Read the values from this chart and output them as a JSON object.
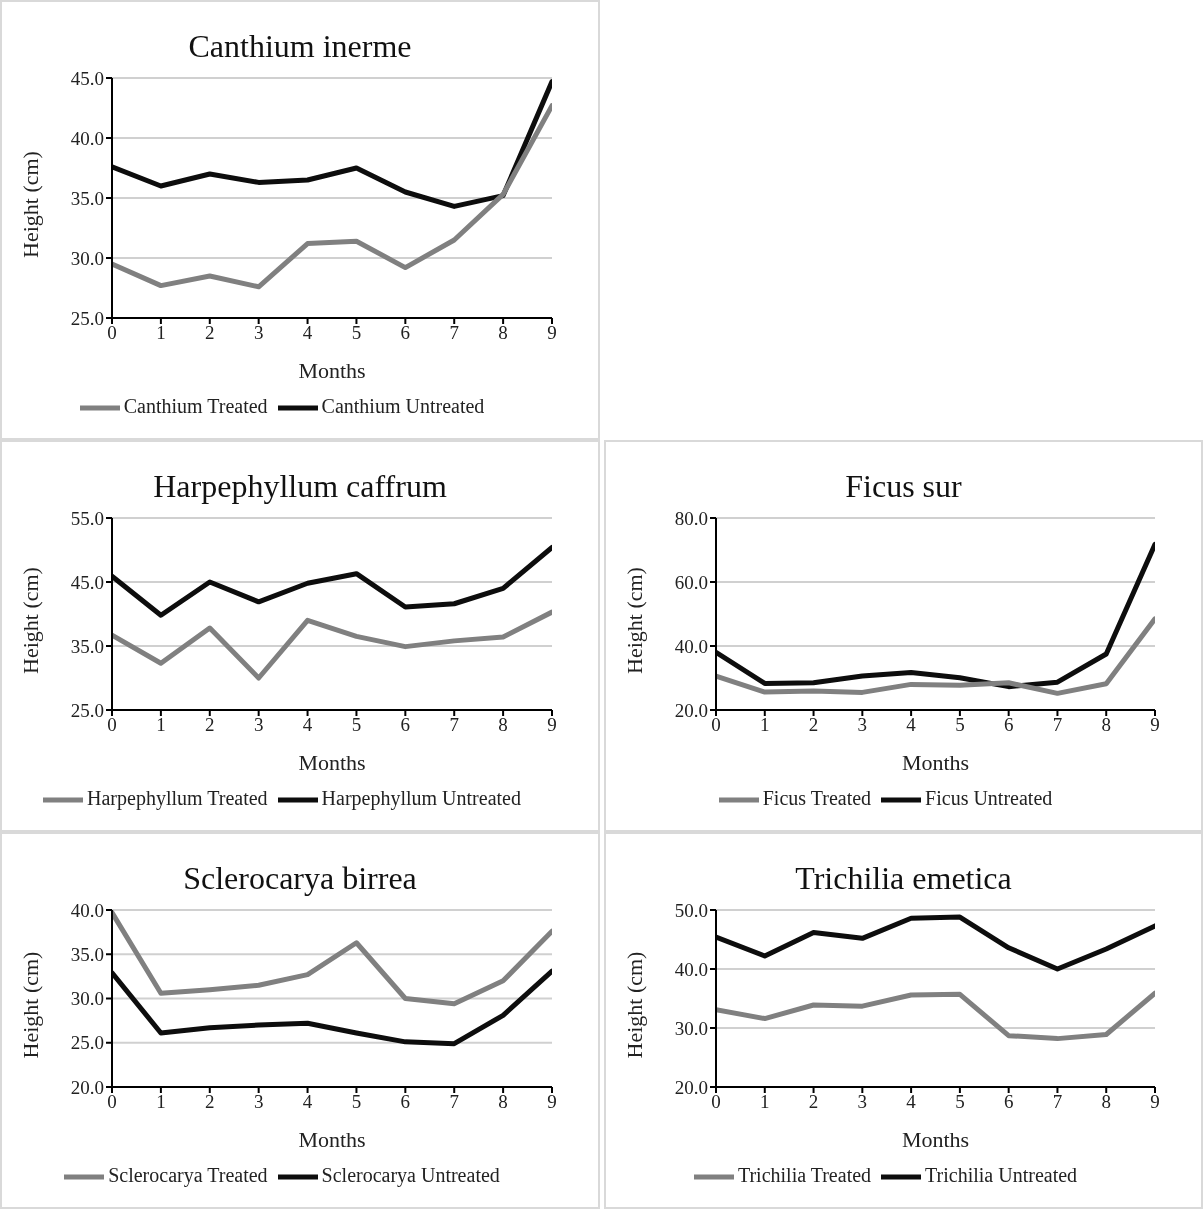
{
  "chart_data": [
    {
      "type": "line",
      "title": "Canthium inerme",
      "xlabel": "Months",
      "ylabel": "Height (cm)",
      "x": [
        0,
        1,
        2,
        3,
        4,
        5,
        6,
        7,
        8,
        9
      ],
      "xlim": [
        0,
        9
      ],
      "xticks": [
        0,
        1,
        2,
        3,
        4,
        5,
        6,
        7,
        8,
        9
      ],
      "ylim": [
        25,
        45
      ],
      "yticks": [
        {
          "value": 25,
          "label": "25.0"
        },
        {
          "value": 30,
          "label": "30.0"
        },
        {
          "value": 35,
          "label": "35.0"
        },
        {
          "value": 40,
          "label": "40.0"
        },
        {
          "value": 45,
          "label": "45.0"
        }
      ],
      "grid": "y",
      "legend": "bottom",
      "marker": "none",
      "line_style": "solid",
      "series": [
        {
          "name": "Canthium Untreated",
          "color": "#0d0d0d",
          "values": [
            37.6,
            36.0,
            37.0,
            36.3,
            36.5,
            37.5,
            35.5,
            34.3,
            35.2,
            44.7
          ]
        },
        {
          "name": "Canthium Treated",
          "color": "#808080",
          "values": [
            29.5,
            27.7,
            28.5,
            27.6,
            31.2,
            31.4,
            29.2,
            31.5,
            35.3,
            42.7
          ]
        }
      ]
    },
    {
      "type": "line",
      "title": "Harpephyllum caffrum",
      "xlabel": "Months",
      "ylabel": "Height (cm)",
      "x": [
        0,
        1,
        2,
        3,
        4,
        5,
        6,
        7,
        8,
        9
      ],
      "xlim": [
        0,
        9
      ],
      "xticks": [
        0,
        1,
        2,
        3,
        4,
        5,
        6,
        7,
        8,
        9
      ],
      "ylim": [
        25,
        55
      ],
      "yticks": [
        {
          "value": 25,
          "label": "25.0"
        },
        {
          "value": 35,
          "label": "35.0"
        },
        {
          "value": 45,
          "label": "45.0"
        },
        {
          "value": 55,
          "label": "55.0"
        }
      ],
      "grid": "y",
      "legend": "bottom",
      "marker": "none",
      "line_style": "solid",
      "series": [
        {
          "name": "Harpephyllum Untreated",
          "color": "#0d0d0d",
          "values": [
            45.9,
            39.8,
            45.0,
            41.9,
            44.8,
            46.3,
            41.1,
            41.6,
            44.0,
            50.4
          ]
        },
        {
          "name": "Harpephyllum Treated",
          "color": "#808080",
          "values": [
            36.7,
            32.3,
            37.8,
            30.0,
            39.0,
            36.5,
            34.9,
            35.8,
            36.4,
            40.3
          ]
        }
      ]
    },
    {
      "type": "line",
      "title": "Ficus sur",
      "xlabel": "Months",
      "ylabel": "Height (cm)",
      "x": [
        0,
        1,
        2,
        3,
        4,
        5,
        6,
        7,
        8,
        9
      ],
      "xlim": [
        0,
        9
      ],
      "xticks": [
        0,
        1,
        2,
        3,
        4,
        5,
        6,
        7,
        8,
        9
      ],
      "ylim": [
        20,
        80
      ],
      "yticks": [
        {
          "value": 20,
          "label": "20.0"
        },
        {
          "value": 40,
          "label": "40.0"
        },
        {
          "value": 60,
          "label": "60.0"
        },
        {
          "value": 80,
          "label": "80.0"
        }
      ],
      "grid": "y",
      "legend": "bottom",
      "marker": "none",
      "line_style": "solid",
      "series": [
        {
          "name": "Ficus Untreated",
          "color": "#0d0d0d",
          "values": [
            38.0,
            28.3,
            28.5,
            30.6,
            31.7,
            30.1,
            27.3,
            28.7,
            37.5,
            71.8
          ]
        },
        {
          "name": "Ficus Treated",
          "color": "#808080",
          "values": [
            30.6,
            25.6,
            25.9,
            25.5,
            28.0,
            27.7,
            28.5,
            25.2,
            28.2,
            48.5
          ]
        }
      ]
    },
    {
      "type": "line",
      "title": "Sclerocarya birrea",
      "xlabel": "Months",
      "ylabel": "Height (cm)",
      "x": [
        0,
        1,
        2,
        3,
        4,
        5,
        6,
        7,
        8,
        9
      ],
      "xlim": [
        0,
        9
      ],
      "xticks": [
        0,
        1,
        2,
        3,
        4,
        5,
        6,
        7,
        8,
        9
      ],
      "ylim": [
        20,
        40
      ],
      "yticks": [
        {
          "value": 20,
          "label": "20.0"
        },
        {
          "value": 25,
          "label": "25.0"
        },
        {
          "value": 30,
          "label": "30.0"
        },
        {
          "value": 35,
          "label": "35.0"
        },
        {
          "value": 40,
          "label": "40.0"
        }
      ],
      "grid": "y",
      "legend": "bottom",
      "marker": "none",
      "line_style": "solid",
      "series": [
        {
          "name": "Sclerocarya Untreated",
          "color": "#0d0d0d",
          "values": [
            32.9,
            26.1,
            26.7,
            27.0,
            27.2,
            26.1,
            25.1,
            24.9,
            28.1,
            33.1
          ]
        },
        {
          "name": "Sclerocarya Treated",
          "color": "#808080",
          "values": [
            39.7,
            30.6,
            31.0,
            31.5,
            32.7,
            36.3,
            30.0,
            29.4,
            32.0,
            37.6
          ]
        }
      ]
    },
    {
      "type": "line",
      "title": "Trichilia emetica",
      "xlabel": "Months",
      "ylabel": "Height (cm)",
      "x": [
        0,
        1,
        2,
        3,
        4,
        5,
        6,
        7,
        8,
        9
      ],
      "xlim": [
        0,
        9
      ],
      "xticks": [
        0,
        1,
        2,
        3,
        4,
        5,
        6,
        7,
        8,
        9
      ],
      "ylim": [
        20,
        50
      ],
      "yticks": [
        {
          "value": 20,
          "label": "20.0"
        },
        {
          "value": 30,
          "label": "30.0"
        },
        {
          "value": 40,
          "label": "40.0"
        },
        {
          "value": 50,
          "label": "50.0"
        }
      ],
      "grid": "y",
      "legend": "bottom",
      "marker": "none",
      "line_style": "solid",
      "series": [
        {
          "name": "Trichilia Untreated",
          "color": "#0d0d0d",
          "values": [
            45.4,
            42.2,
            46.2,
            45.2,
            48.6,
            48.8,
            43.6,
            40.0,
            43.4,
            47.3
          ]
        },
        {
          "name": "Trichilia Treated",
          "color": "#808080",
          "values": [
            33.1,
            31.6,
            33.9,
            33.7,
            35.6,
            35.7,
            28.7,
            28.2,
            28.9,
            35.9
          ]
        }
      ]
    }
  ]
}
